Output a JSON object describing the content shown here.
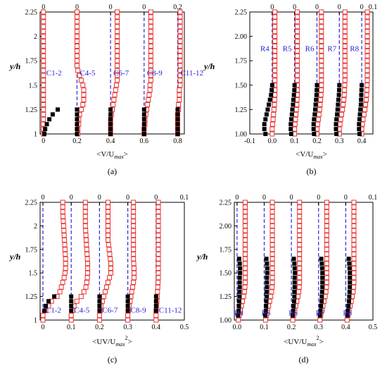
{
  "chart_data": [
    {
      "type": "scatter",
      "panel_label": "(a)",
      "xlabel": "<V/U",
      "xlabel_sub": "max",
      "xlabel_close": ">",
      "ylabel": "y/h",
      "xlim": [
        -0.02,
        0.84
      ],
      "ylim": [
        1.0,
        2.25
      ],
      "xticks": [
        "0",
        "0.2",
        "0.4",
        "0.6",
        "0.8"
      ],
      "xtick_values": [
        0,
        0.2,
        0.4,
        0.6,
        0.8
      ],
      "top_ticks": [
        "0",
        "0",
        "0",
        "0",
        "0.2"
      ],
      "yticks": [
        "1",
        "1.25",
        "1.5",
        "1.75",
        "2",
        "2.25"
      ],
      "ytick_values": [
        1,
        1.25,
        1.5,
        1.75,
        2.0,
        2.25
      ],
      "station_labels": [
        "C1-2",
        "C4-5",
        "C6-7",
        "C8-9",
        "C11-12"
      ],
      "label_y": 1.6,
      "offsets": [
        0,
        0.2,
        0.4,
        0.6,
        0.8
      ],
      "exp_y": [
        1.0,
        1.05,
        1.1,
        1.15,
        1.2,
        1.25
      ],
      "exp_x": [
        [
          0.005,
          0.01,
          0.02,
          0.035,
          0.055,
          0.085
        ],
        [
          0.2,
          0.2,
          0.2,
          0.2,
          0.2,
          0.2
        ],
        [
          0.4,
          0.4,
          0.4,
          0.4,
          0.4,
          0.4
        ],
        [
          0.6,
          0.6,
          0.6,
          0.6,
          0.6,
          0.6
        ],
        [
          0.8,
          0.8,
          0.8,
          0.8,
          0.8,
          0.8
        ]
      ],
      "sim_y": [
        1.0,
        1.05,
        1.1,
        1.15,
        1.2,
        1.25,
        1.3,
        1.35,
        1.4,
        1.45,
        1.5,
        1.55,
        1.6,
        1.65,
        1.7,
        1.75,
        1.8,
        1.85,
        1.9,
        1.95,
        2.0,
        2.05,
        2.1,
        2.15,
        2.2,
        2.25
      ],
      "sim_x": [
        [
          0.0,
          0.0,
          0.0,
          0.0,
          0.0,
          0.0,
          0.0,
          0.0,
          0.0,
          0.0,
          0.0,
          0.0,
          0.0,
          0.0,
          0.0,
          0.0,
          0.0,
          0.0,
          0.0,
          0.0,
          0.0,
          0.0,
          0.0,
          0.0,
          0.0,
          0.0
        ],
        [
          0.205,
          0.205,
          0.21,
          0.21,
          0.215,
          0.225,
          0.235,
          0.24,
          0.24,
          0.24,
          0.235,
          0.225,
          0.215,
          0.205,
          0.2,
          0.2,
          0.2,
          0.2,
          0.2,
          0.2,
          0.2,
          0.2,
          0.2,
          0.2,
          0.2,
          0.2
        ],
        [
          0.4,
          0.4,
          0.4,
          0.4,
          0.405,
          0.41,
          0.415,
          0.42,
          0.425,
          0.43,
          0.435,
          0.44,
          0.44,
          0.44,
          0.44,
          0.44,
          0.44,
          0.44,
          0.44,
          0.44,
          0.44,
          0.44,
          0.44,
          0.44,
          0.44,
          0.44
        ],
        [
          0.6,
          0.6,
          0.605,
          0.605,
          0.61,
          0.615,
          0.62,
          0.625,
          0.63,
          0.635,
          0.635,
          0.64,
          0.64,
          0.64,
          0.64,
          0.64,
          0.64,
          0.64,
          0.64,
          0.64,
          0.64,
          0.64,
          0.64,
          0.64,
          0.64,
          0.64
        ],
        [
          0.8,
          0.8,
          0.8,
          0.8,
          0.8,
          0.805,
          0.805,
          0.81,
          0.81,
          0.81,
          0.815,
          0.815,
          0.815,
          0.815,
          0.815,
          0.815,
          0.815,
          0.815,
          0.815,
          0.815,
          0.815,
          0.815,
          0.815,
          0.815,
          0.815,
          0.815
        ]
      ]
    },
    {
      "type": "scatter",
      "panel_label": "(b)",
      "xlabel": "<V/U",
      "xlabel_sub": "max",
      "xlabel_close": ">",
      "ylabel": "y/h",
      "xlim": [
        -0.1,
        0.45
      ],
      "ylim": [
        1.0,
        2.25
      ],
      "xticks": [
        "-0.1",
        "0.0",
        "0.1",
        "0.2",
        "0.3",
        "0.4"
      ],
      "xtick_values": [
        -0.1,
        0.0,
        0.1,
        0.2,
        0.3,
        0.4
      ],
      "top_ticks": [
        "0",
        "0",
        "0",
        "0",
        "0",
        "0.1"
      ],
      "yticks": [
        "1.00",
        "1.25",
        "1.50",
        "1.75",
        "2.00",
        "2.25"
      ],
      "ytick_values": [
        1,
        1.25,
        1.5,
        1.75,
        2.0,
        2.25
      ],
      "station_labels": [
        "R4",
        "R5",
        "R6",
        "R7",
        "R8"
      ],
      "label_y": 1.85,
      "offsets": [
        0,
        0.1,
        0.2,
        0.3,
        0.4
      ],
      "exp_y": [
        1.0,
        1.05,
        1.1,
        1.15,
        1.2,
        1.25,
        1.3,
        1.35,
        1.4,
        1.45,
        1.5
      ],
      "exp_x": [
        [
          -0.03,
          -0.035,
          -0.035,
          -0.03,
          -0.025,
          -0.02,
          -0.015,
          -0.01,
          -0.005,
          -0.002,
          0.0
        ],
        [
          0.085,
          0.083,
          0.083,
          0.085,
          0.088,
          0.09,
          0.093,
          0.095,
          0.097,
          0.099,
          0.1
        ],
        [
          0.187,
          0.185,
          0.185,
          0.187,
          0.19,
          0.192,
          0.194,
          0.196,
          0.198,
          0.199,
          0.2
        ],
        [
          0.287,
          0.285,
          0.285,
          0.287,
          0.29,
          0.292,
          0.294,
          0.296,
          0.298,
          0.299,
          0.3
        ],
        [
          0.39,
          0.388,
          0.388,
          0.39,
          0.392,
          0.394,
          0.396,
          0.397,
          0.398,
          0.399,
          0.4
        ]
      ],
      "sim_y": [
        1.0,
        1.05,
        1.1,
        1.15,
        1.2,
        1.25,
        1.3,
        1.35,
        1.4,
        1.45,
        1.5,
        1.55,
        1.6,
        1.65,
        1.7,
        1.75,
        1.8,
        1.85,
        1.9,
        1.95,
        2.0,
        2.05,
        2.1,
        2.15,
        2.2,
        2.25
      ],
      "sim_x": [
        [
          0.0,
          0.0,
          0.002,
          0.004,
          0.006,
          0.008,
          0.01,
          0.011,
          0.012,
          0.012,
          0.012,
          0.012,
          0.012,
          0.012,
          0.012,
          0.012,
          0.012,
          0.012,
          0.012,
          0.012,
          0.012,
          0.012,
          0.012,
          0.012,
          0.012,
          0.012
        ],
        [
          0.1,
          0.1,
          0.102,
          0.104,
          0.106,
          0.108,
          0.11,
          0.111,
          0.112,
          0.112,
          0.112,
          0.112,
          0.112,
          0.112,
          0.112,
          0.112,
          0.112,
          0.112,
          0.112,
          0.112,
          0.112,
          0.112,
          0.112,
          0.112,
          0.112,
          0.112
        ],
        [
          0.2,
          0.2,
          0.203,
          0.206,
          0.209,
          0.212,
          0.214,
          0.216,
          0.218,
          0.219,
          0.22,
          0.22,
          0.22,
          0.22,
          0.22,
          0.22,
          0.22,
          0.22,
          0.22,
          0.22,
          0.22,
          0.22,
          0.22,
          0.22,
          0.22,
          0.22
        ],
        [
          0.3,
          0.3,
          0.303,
          0.306,
          0.31,
          0.314,
          0.317,
          0.32,
          0.322,
          0.323,
          0.324,
          0.325,
          0.325,
          0.325,
          0.325,
          0.325,
          0.325,
          0.325,
          0.325,
          0.325,
          0.325,
          0.325,
          0.325,
          0.325,
          0.325,
          0.325
        ],
        [
          0.4,
          0.4,
          0.403,
          0.406,
          0.41,
          0.414,
          0.417,
          0.42,
          0.422,
          0.423,
          0.424,
          0.425,
          0.425,
          0.425,
          0.425,
          0.425,
          0.425,
          0.425,
          0.425,
          0.425,
          0.425,
          0.425,
          0.425,
          0.425,
          0.425,
          0.425
        ]
      ]
    },
    {
      "type": "scatter",
      "panel_label": "(c)",
      "xlabel": "<UV/U",
      "xlabel_sub": "max",
      "xlabel_sup": "2",
      "xlabel_close": ">",
      "ylabel": "y/h",
      "xlim": [
        -0.01,
        0.5
      ],
      "ylim": [
        1.0,
        2.25
      ],
      "xticks": [
        "0",
        "0.1",
        "0.2",
        "0.3",
        "0.4",
        "0.5"
      ],
      "xtick_values": [
        0,
        0.1,
        0.2,
        0.3,
        0.4,
        0.5
      ],
      "top_ticks": [
        "0",
        "0",
        "0",
        "0",
        "0",
        "0.1"
      ],
      "yticks": [
        "1",
        "1.25",
        "1.5",
        "1.75",
        "2",
        "2.25"
      ],
      "ytick_values": [
        1,
        1.25,
        1.5,
        1.75,
        2.0,
        2.25
      ],
      "station_labels": [
        "C1-2",
        "C4-5",
        "C6-7",
        "C8-9",
        "C11-12"
      ],
      "label_y": 1.08,
      "offsets": [
        0,
        0.1,
        0.2,
        0.3,
        0.4
      ],
      "exp_y": [
        1.1,
        1.15,
        1.2,
        1.25
      ],
      "exp_x": [
        [
          0.005,
          0.01,
          0.02,
          0.04
        ],
        [
          0.1,
          0.1,
          0.1,
          0.1
        ],
        [
          0.2,
          0.2,
          0.2,
          0.2
        ],
        [
          0.3,
          0.3,
          0.3,
          0.3
        ],
        [
          0.4,
          0.4,
          0.4,
          0.4
        ]
      ],
      "sim_y": [
        1.0,
        1.05,
        1.1,
        1.15,
        1.2,
        1.25,
        1.3,
        1.35,
        1.4,
        1.45,
        1.5,
        1.55,
        1.6,
        1.65,
        1.7,
        1.75,
        1.8,
        1.85,
        1.9,
        1.95,
        2.0,
        2.05,
        2.1,
        2.15,
        2.2,
        2.25
      ],
      "sim_x": [
        [
          0.0,
          0.0,
          0.01,
          0.02,
          0.03,
          0.05,
          0.06,
          0.065,
          0.07,
          0.075,
          0.078,
          0.08,
          0.08,
          0.08,
          0.079,
          0.078,
          0.077,
          0.076,
          0.075,
          0.074,
          0.073,
          0.072,
          0.071,
          0.07,
          0.07,
          0.07
        ],
        [
          0.1,
          0.1,
          0.105,
          0.11,
          0.12,
          0.135,
          0.145,
          0.152,
          0.155,
          0.157,
          0.158,
          0.158,
          0.158,
          0.157,
          0.156,
          0.155,
          0.154,
          0.153,
          0.152,
          0.151,
          0.15,
          0.15,
          0.15,
          0.15,
          0.15,
          0.15
        ],
        [
          0.2,
          0.2,
          0.202,
          0.205,
          0.21,
          0.215,
          0.22,
          0.225,
          0.23,
          0.235,
          0.24,
          0.24,
          0.24,
          0.238,
          0.236,
          0.234,
          0.232,
          0.23,
          0.23,
          0.23,
          0.23,
          0.23,
          0.23,
          0.23,
          0.23,
          0.23
        ],
        [
          0.3,
          0.3,
          0.302,
          0.305,
          0.308,
          0.311,
          0.314,
          0.317,
          0.32,
          0.322,
          0.322,
          0.322,
          0.321,
          0.32,
          0.32,
          0.32,
          0.32,
          0.32,
          0.32,
          0.32,
          0.32,
          0.32,
          0.32,
          0.32,
          0.32,
          0.32
        ],
        [
          0.4,
          0.4,
          0.4,
          0.402,
          0.403,
          0.404,
          0.405,
          0.406,
          0.407,
          0.408,
          0.408,
          0.408,
          0.408,
          0.408,
          0.408,
          0.408,
          0.408,
          0.408,
          0.408,
          0.408,
          0.408,
          0.408,
          0.408,
          0.408,
          0.408,
          0.408
        ]
      ]
    },
    {
      "type": "scatter",
      "panel_label": "(d)",
      "xlabel": "<UV/U",
      "xlabel_sub": "max",
      "xlabel_sup": "2",
      "xlabel_close": ">",
      "ylabel": "y/h",
      "xlim": [
        -0.01,
        0.5
      ],
      "ylim": [
        1.0,
        2.25
      ],
      "xticks": [
        "0.0",
        "0.1",
        "0.2",
        "0.3",
        "0.4",
        "0.5"
      ],
      "xtick_values": [
        0,
        0.1,
        0.2,
        0.3,
        0.4,
        0.5
      ],
      "top_ticks": [
        "0",
        "0",
        "0",
        "0",
        "0",
        "0.1"
      ],
      "yticks": [
        "1.00",
        "1.25",
        "1.50",
        "1.75",
        "2.00",
        "2.25"
      ],
      "ytick_values": [
        1,
        1.25,
        1.5,
        1.75,
        2.0,
        2.25
      ],
      "station_labels": [
        "R4",
        "R5",
        "R6",
        "R7",
        "R8"
      ],
      "label_y": 1.05,
      "offsets": [
        0,
        0.1,
        0.2,
        0.3,
        0.4
      ],
      "exp_y": [
        1.05,
        1.1,
        1.15,
        1.2,
        1.25,
        1.3,
        1.35,
        1.4,
        1.45,
        1.5,
        1.55,
        1.6,
        1.65
      ],
      "exp_x": [
        [
          0.004,
          0.006,
          0.007,
          0.008,
          0.009,
          0.009,
          0.01,
          0.01,
          0.01,
          0.011,
          0.011,
          0.01,
          0.008
        ],
        [
          0.104,
          0.106,
          0.107,
          0.108,
          0.109,
          0.109,
          0.11,
          0.11,
          0.11,
          0.111,
          0.111,
          0.11,
          0.108
        ],
        [
          0.205,
          0.207,
          0.208,
          0.21,
          0.211,
          0.211,
          0.212,
          0.212,
          0.212,
          0.213,
          0.212,
          0.211,
          0.209
        ],
        [
          0.305,
          0.307,
          0.309,
          0.311,
          0.312,
          0.313,
          0.314,
          0.314,
          0.314,
          0.314,
          0.313,
          0.312,
          0.31
        ],
        [
          0.406,
          0.408,
          0.41,
          0.412,
          0.413,
          0.414,
          0.415,
          0.415,
          0.415,
          0.415,
          0.414,
          0.413,
          0.411
        ]
      ],
      "sim_y": [
        1.0,
        1.05,
        1.1,
        1.15,
        1.2,
        1.25,
        1.3,
        1.35,
        1.4,
        1.45,
        1.5,
        1.55,
        1.6,
        1.65,
        1.7,
        1.75,
        1.8,
        1.85,
        1.9,
        1.95,
        2.0,
        2.05,
        2.1,
        2.15,
        2.2,
        2.25
      ],
      "sim_x": [
        [
          0.005,
          0.008,
          0.012,
          0.016,
          0.02,
          0.024,
          0.027,
          0.029,
          0.03,
          0.03,
          0.03,
          0.03,
          0.03,
          0.03,
          0.03,
          0.03,
          0.03,
          0.03,
          0.03,
          0.03,
          0.03,
          0.03,
          0.03,
          0.03,
          0.03,
          0.03
        ],
        [
          0.105,
          0.108,
          0.112,
          0.116,
          0.12,
          0.124,
          0.127,
          0.129,
          0.13,
          0.13,
          0.13,
          0.13,
          0.13,
          0.13,
          0.13,
          0.13,
          0.13,
          0.13,
          0.13,
          0.13,
          0.13,
          0.13,
          0.13,
          0.13,
          0.13,
          0.13
        ],
        [
          0.205,
          0.208,
          0.212,
          0.216,
          0.22,
          0.224,
          0.227,
          0.229,
          0.23,
          0.23,
          0.23,
          0.23,
          0.23,
          0.23,
          0.23,
          0.23,
          0.23,
          0.23,
          0.23,
          0.23,
          0.23,
          0.23,
          0.23,
          0.23,
          0.23,
          0.23
        ],
        [
          0.305,
          0.308,
          0.312,
          0.316,
          0.32,
          0.324,
          0.327,
          0.329,
          0.33,
          0.33,
          0.33,
          0.33,
          0.33,
          0.33,
          0.33,
          0.33,
          0.33,
          0.33,
          0.33,
          0.33,
          0.33,
          0.33,
          0.33,
          0.33,
          0.33,
          0.33
        ],
        [
          0.405,
          0.408,
          0.412,
          0.416,
          0.42,
          0.424,
          0.427,
          0.429,
          0.43,
          0.43,
          0.43,
          0.43,
          0.43,
          0.43,
          0.43,
          0.43,
          0.43,
          0.43,
          0.43,
          0.43,
          0.43,
          0.43,
          0.43,
          0.43,
          0.43,
          0.43
        ]
      ]
    }
  ],
  "colors": {
    "experiment": "#000000",
    "simulation": "#e8322f",
    "reference_line": "#2a2ad8",
    "station_label": "#1f1fd6"
  }
}
